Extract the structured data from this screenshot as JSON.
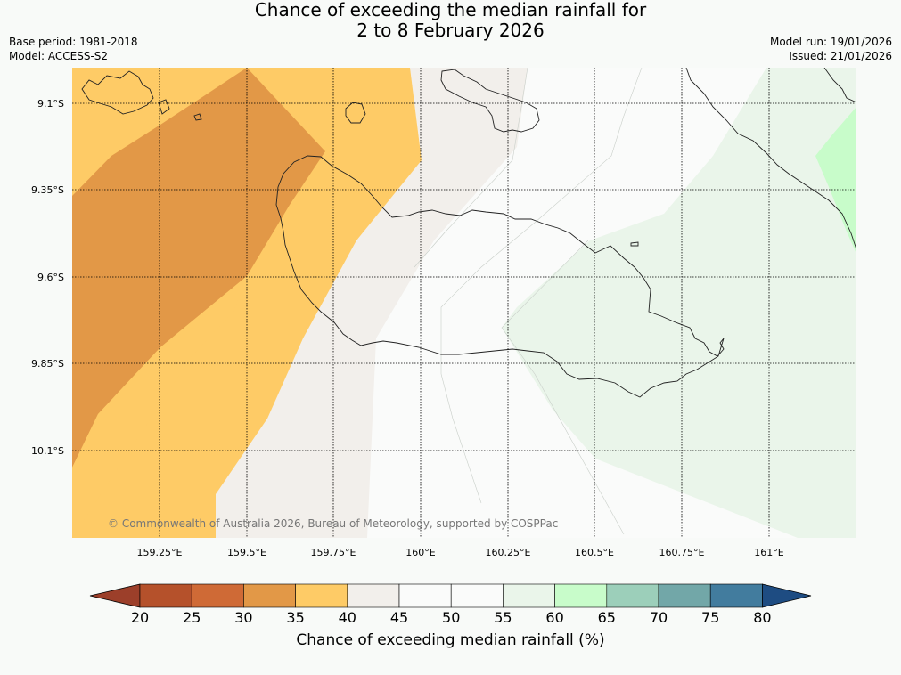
{
  "title": {
    "line1": "Chance of exceeding the median rainfall for",
    "line2": "2 to 8 February 2026"
  },
  "meta_left": {
    "base_period": "Base period: 1981-2018",
    "model": "Model: ACCESS-S2"
  },
  "meta_right": {
    "model_run": "Model run: 19/01/2026",
    "issued": "Issued: 21/01/2026"
  },
  "map": {
    "lat_labels": [
      "9.1°S",
      "9.35°S",
      "9.6°S",
      "9.85°S",
      "10.1°S"
    ],
    "lon_labels": [
      "159.25°E",
      "159.5°E",
      "159.75°E",
      "160°E",
      "160.25°E",
      "160.5°E",
      "160.75°E",
      "161°E"
    ],
    "copyright": "© Commonwealth of Australia 2026, Bureau of Meteorology, supported by COSPPac"
  },
  "colorbar": {
    "ticks": [
      "20",
      "25",
      "30",
      "35",
      "40",
      "45",
      "50",
      "55",
      "60",
      "65",
      "70",
      "75",
      "80"
    ],
    "colors": [
      "#b5512b",
      "#cf6a36",
      "#e29847",
      "#fecb66",
      "#f2efeb",
      "#fafbfa",
      "#fafbfa",
      "#eaf5ea",
      "#c8fcca",
      "#9ccfba",
      "#72a7a8",
      "#427c9e"
    ],
    "under_color": "#9c3f2a",
    "over_color": "#1e4c82",
    "label": "Chance of exceeding median rainfall (%)"
  }
}
